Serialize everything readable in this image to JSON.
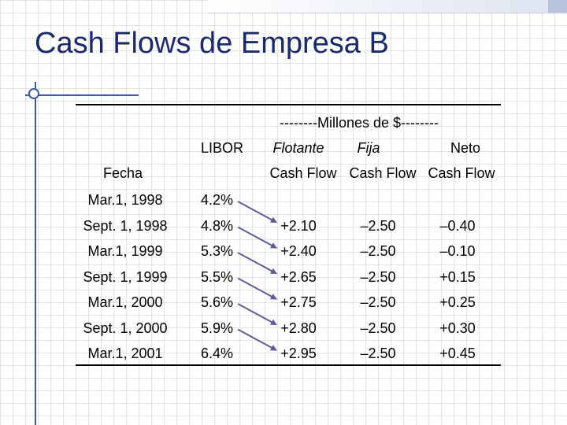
{
  "slide": {
    "title": "Cash Flows de Empresa B",
    "units_header": "--------Millones de $--------",
    "columns": {
      "fecha": "Fecha",
      "libor": "LIBOR",
      "flotante": "Flotante",
      "fija": "Fija",
      "neto": "Neto",
      "cf1": "Cash Flow",
      "cf2": "Cash Flow",
      "cf3": "Cash Flow"
    },
    "rows": [
      {
        "fecha": "Mar.1, 1998",
        "libor": "4.2%",
        "flotante": "",
        "fija": "",
        "neto": ""
      },
      {
        "fecha": "Sept. 1, 1998",
        "libor": "4.8%",
        "flotante": "+2.10",
        "fija": "–2.50",
        "neto": "–0.40"
      },
      {
        "fecha": "Mar.1, 1999",
        "libor": "5.3%",
        "flotante": "+2.40",
        "fija": "–2.50",
        "neto": "–0.10"
      },
      {
        "fecha": "Sept. 1, 1999",
        "libor": "5.5%",
        "flotante": "+2.65",
        "fija": "–2.50",
        "neto": "+0.15"
      },
      {
        "fecha": "Mar.1, 2000",
        "libor": "5.6%",
        "flotante": "+2.75",
        "fija": "–2.50",
        "neto": "+0.25"
      },
      {
        "fecha": "Sept. 1, 2000",
        "libor": "5.9%",
        "flotante": "+2.80",
        "fija": "–2.50",
        "neto": "+0.30"
      },
      {
        "fecha": "Mar.1, 2001",
        "libor": "6.4%",
        "flotante": "+2.95",
        "fija": "–2.50",
        "neto": "+0.45"
      }
    ],
    "arrow_color": "#5a5f98"
  }
}
